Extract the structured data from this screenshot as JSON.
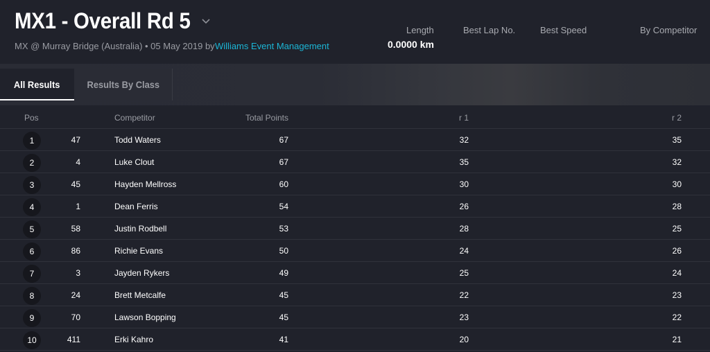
{
  "header": {
    "title": "MX1 - Overall Rd 5",
    "subtitle": "MX @ Murray Bridge (Australia) • 05 May 2019 by",
    "organizer": "Williams Event Management",
    "stats": [
      {
        "label": "Length",
        "value": "0.0000 km"
      },
      {
        "label": "Best Lap No.",
        "value": ""
      },
      {
        "label": "Best Speed",
        "value": ""
      },
      {
        "label": "By Competitor",
        "value": ""
      }
    ]
  },
  "tabs": [
    {
      "label": "All Results",
      "active": true
    },
    {
      "label": "Results By Class",
      "active": false
    }
  ],
  "table": {
    "headers": {
      "pos": "Pos",
      "competitor": "Competitor",
      "total": "Total Points",
      "r1": "r 1",
      "r2": "r 2"
    },
    "rows": [
      {
        "pos": "1",
        "num": "47",
        "name": "Todd Waters",
        "total": "67",
        "r1": "32",
        "r2": "35"
      },
      {
        "pos": "2",
        "num": "4",
        "name": "Luke Clout",
        "total": "67",
        "r1": "35",
        "r2": "32"
      },
      {
        "pos": "3",
        "num": "45",
        "name": "Hayden Mellross",
        "total": "60",
        "r1": "30",
        "r2": "30"
      },
      {
        "pos": "4",
        "num": "1",
        "name": "Dean Ferris",
        "total": "54",
        "r1": "26",
        "r2": "28"
      },
      {
        "pos": "5",
        "num": "58",
        "name": "Justin Rodbell",
        "total": "53",
        "r1": "28",
        "r2": "25"
      },
      {
        "pos": "6",
        "num": "86",
        "name": "Richie Evans",
        "total": "50",
        "r1": "24",
        "r2": "26"
      },
      {
        "pos": "7",
        "num": "3",
        "name": "Jayden Rykers",
        "total": "49",
        "r1": "25",
        "r2": "24"
      },
      {
        "pos": "8",
        "num": "24",
        "name": "Brett Metcalfe",
        "total": "45",
        "r1": "22",
        "r2": "23"
      },
      {
        "pos": "9",
        "num": "70",
        "name": "Lawson Bopping",
        "total": "45",
        "r1": "23",
        "r2": "22"
      },
      {
        "pos": "10",
        "num": "411",
        "name": "Erki Kahro",
        "total": "41",
        "r1": "20",
        "r2": "21"
      }
    ]
  },
  "colors": {
    "background": "#20222b",
    "accent_link": "#1bb6d6",
    "badge": "#16171d"
  },
  "icons": {
    "title_dropdown": "chevron-down-icon"
  }
}
